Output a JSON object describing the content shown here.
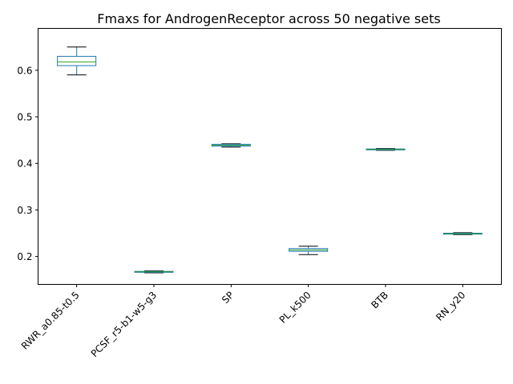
{
  "chart_data": {
    "type": "box",
    "title": "Fmaxs for AndrogenReceptor across 50 negative sets",
    "xlabel": "",
    "ylabel": "",
    "ylim": [
      0.14,
      0.69
    ],
    "yticks": [
      0.2,
      0.3,
      0.4,
      0.5,
      0.6
    ],
    "ytick_labels": [
      "0.2",
      "0.3",
      "0.4",
      "0.5",
      "0.6"
    ],
    "grid": false,
    "categories": [
      "RWR_a0.85-t0.5",
      "PCSF_r5-b1-w5-g3",
      "SP",
      "PL_k500",
      "BTB",
      "RN_y20"
    ],
    "boxes": [
      {
        "whislo": 0.59,
        "q1": 0.61,
        "med": 0.618,
        "q3": 0.63,
        "whishi": 0.65
      },
      {
        "whislo": 0.165,
        "q1": 0.166,
        "med": 0.167,
        "q3": 0.168,
        "whishi": 0.169
      },
      {
        "whislo": 0.435,
        "q1": 0.437,
        "med": 0.439,
        "q3": 0.441,
        "whishi": 0.442
      },
      {
        "whislo": 0.204,
        "q1": 0.211,
        "med": 0.214,
        "q3": 0.217,
        "whishi": 0.222
      },
      {
        "whislo": 0.428,
        "q1": 0.429,
        "med": 0.43,
        "q3": 0.431,
        "whishi": 0.432
      },
      {
        "whislo": 0.247,
        "q1": 0.248,
        "med": 0.249,
        "q3": 0.25,
        "whishi": 0.251
      }
    ],
    "colors": {
      "box": "#1f77b4",
      "median": "#2ca02c",
      "whisker": "#000000"
    }
  }
}
